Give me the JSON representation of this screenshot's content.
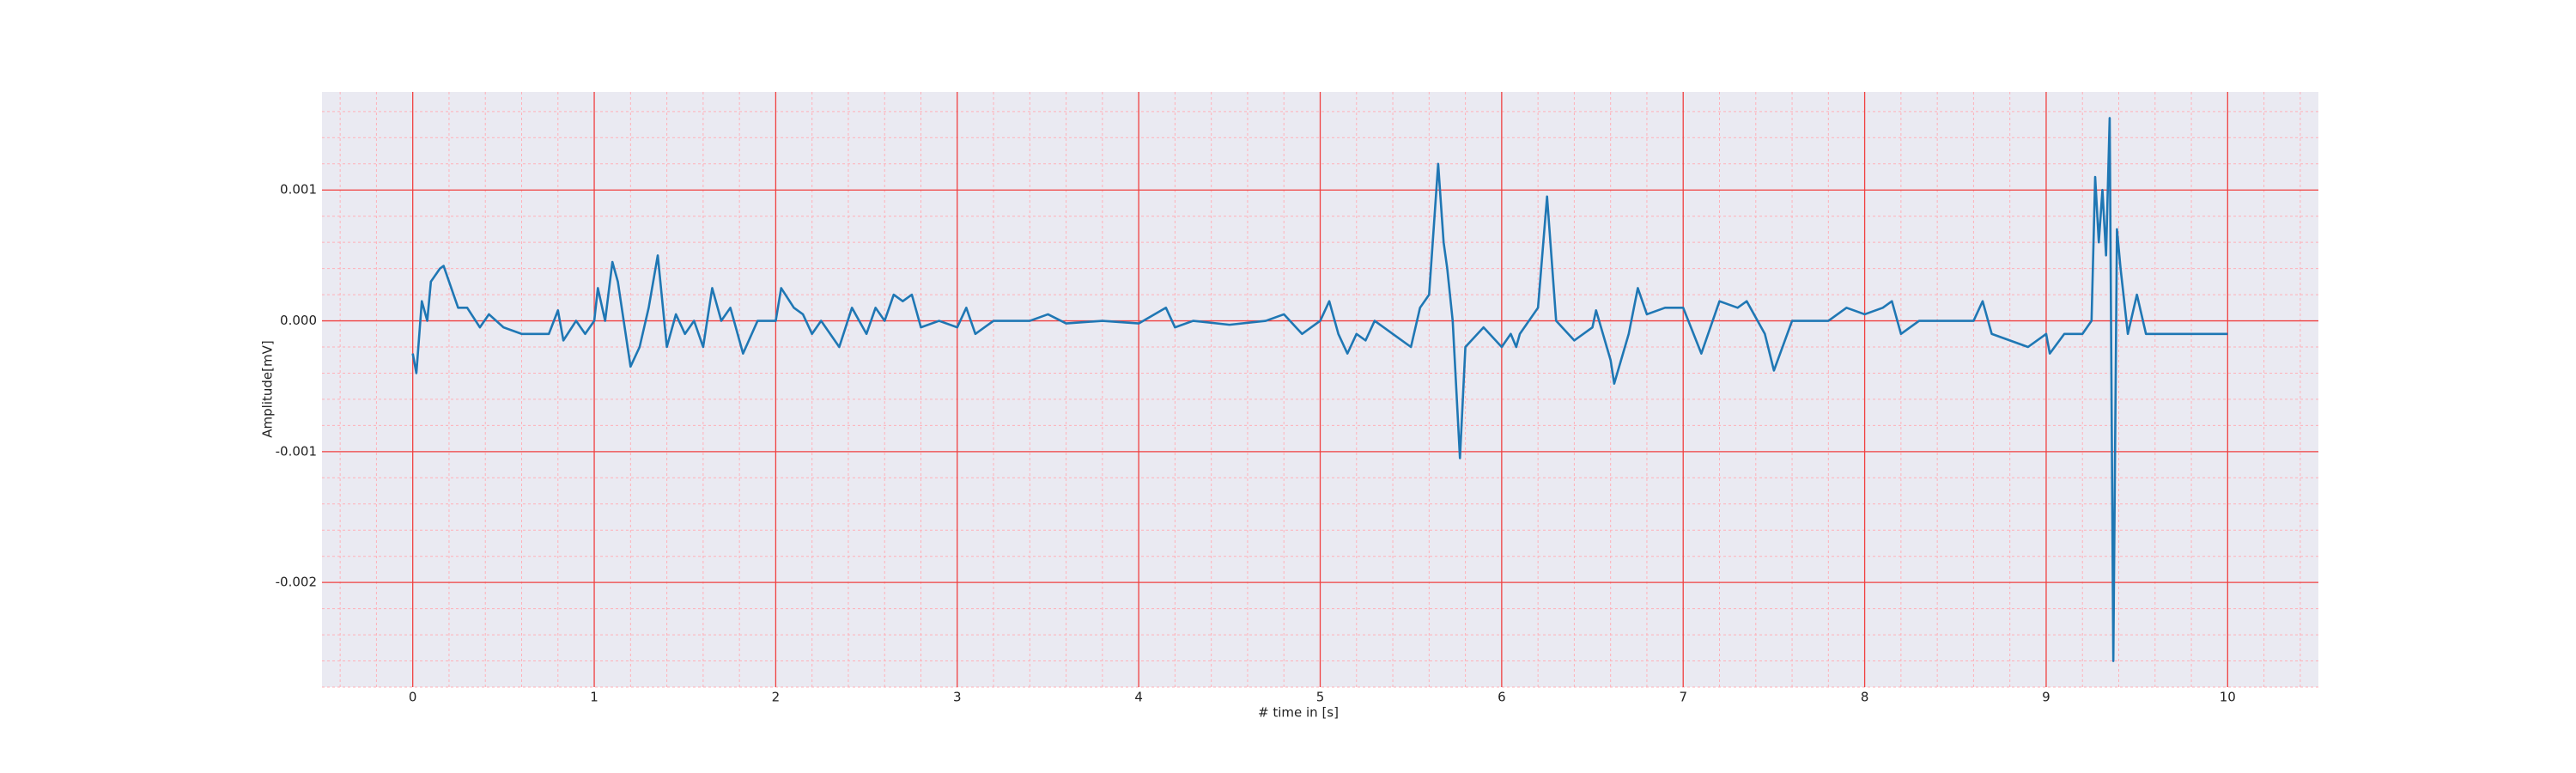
{
  "chart_data": {
    "type": "line",
    "xlabel": "# time in [s]",
    "ylabel": "Amplitude[mV]",
    "xlim": [
      -0.5,
      10.5
    ],
    "ylim": [
      -0.0028,
      0.00175
    ],
    "xticks": [
      0,
      1,
      2,
      3,
      4,
      5,
      6,
      7,
      8,
      9,
      10
    ],
    "yticks": [
      -0.002,
      -0.001,
      {
        "value": 0,
        "label": "0.000"
      },
      0.001
    ],
    "xminorticks": [
      -0.4,
      -0.2,
      0.2,
      0.4,
      0.6,
      0.8,
      1.2,
      1.4,
      1.6,
      1.8,
      2.2,
      2.4,
      2.6,
      2.8,
      3.2,
      3.4,
      3.6,
      3.8,
      4.2,
      4.4,
      4.6,
      4.8,
      5.2,
      5.4,
      5.6,
      5.8,
      6.2,
      6.4,
      6.6,
      6.8,
      7.2,
      7.4,
      7.6,
      7.8,
      8.2,
      8.4,
      8.6,
      8.8,
      9.2,
      9.4,
      9.6,
      9.8,
      10.2,
      10.4
    ],
    "yminorticks": [
      -0.0028,
      -0.0026,
      -0.0024,
      -0.0022,
      -0.0018,
      -0.0016,
      -0.0014,
      -0.0012,
      -0.0008,
      -0.0006,
      -0.0004,
      -0.0002,
      0.0002,
      0.0004,
      0.0006,
      0.0008,
      0.0012,
      0.0014,
      0.0016
    ],
    "grid": true,
    "minor_grid": true,
    "series": [
      {
        "color": "#1f77b4",
        "x": [
          0,
          0.02,
          0.05,
          0.08,
          0.1,
          0.15,
          0.17,
          0.25,
          0.3,
          0.37,
          0.42,
          0.5,
          0.6,
          0.75,
          0.8,
          0.83,
          0.9,
          0.95,
          1.0,
          1.02,
          1.06,
          1.1,
          1.13,
          1.2,
          1.25,
          1.3,
          1.35,
          1.4,
          1.45,
          1.5,
          1.55,
          1.6,
          1.65,
          1.7,
          1.75,
          1.82,
          1.9,
          2.0,
          2.03,
          2.1,
          2.15,
          2.2,
          2.25,
          2.3,
          2.35,
          2.42,
          2.5,
          2.55,
          2.6,
          2.65,
          2.7,
          2.75,
          2.8,
          2.9,
          3.0,
          3.05,
          3.1,
          3.2,
          3.4,
          3.5,
          3.6,
          3.8,
          4.0,
          4.15,
          4.2,
          4.3,
          4.5,
          4.7,
          4.8,
          4.9,
          5.0,
          5.05,
          5.1,
          5.15,
          5.2,
          5.25,
          5.3,
          5.4,
          5.5,
          5.55,
          5.6,
          5.65,
          5.68,
          5.7,
          5.73,
          5.77,
          5.8,
          5.9,
          6.0,
          6.05,
          6.08,
          6.1,
          6.2,
          6.25,
          6.3,
          6.4,
          6.5,
          6.52,
          6.6,
          6.62,
          6.7,
          6.75,
          6.8,
          6.9,
          7.0,
          7.1,
          7.2,
          7.3,
          7.35,
          7.45,
          7.5,
          7.6,
          7.8,
          7.9,
          8.0,
          8.1,
          8.15,
          8.2,
          8.3,
          8.5,
          8.6,
          8.65,
          8.7,
          8.9,
          9.0,
          9.02,
          9.1,
          9.2,
          9.25,
          9.27,
          9.29,
          9.31,
          9.33,
          9.35,
          9.37,
          9.39,
          9.41,
          9.45,
          9.5,
          9.55,
          9.7,
          9.85,
          10.0
        ],
        "values": [
          -0.00025,
          -0.0004,
          0.00015,
          0.0,
          0.0003,
          0.0004,
          0.00042,
          0.0001,
          0.0001,
          -5e-05,
          5e-05,
          -5e-05,
          -0.0001,
          -0.0001,
          8e-05,
          -0.00015,
          0.0,
          -0.0001,
          0.0,
          0.00025,
          0.0,
          0.00045,
          0.0003,
          -0.00035,
          -0.0002,
          0.0001,
          0.0005,
          -0.0002,
          5e-05,
          -0.0001,
          0.0,
          -0.0002,
          0.00025,
          0.0,
          0.0001,
          -0.00025,
          0.0,
          0.0,
          0.00025,
          0.0001,
          5e-05,
          -0.0001,
          0.0,
          -0.0001,
          -0.0002,
          0.0001,
          -0.0001,
          0.0001,
          0.0,
          0.0002,
          0.00015,
          0.0002,
          -5e-05,
          0.0,
          -5e-05,
          0.0001,
          -0.0001,
          0.0,
          0.0,
          5e-05,
          -2e-05,
          0.0,
          -2e-05,
          0.0001,
          -5e-05,
          0.0,
          -3e-05,
          0.0,
          5e-05,
          -0.0001,
          0.0,
          0.00015,
          -0.0001,
          -0.00025,
          -0.0001,
          -0.00015,
          0.0,
          -0.0001,
          -0.0002,
          0.0001,
          0.0002,
          0.0012,
          0.0006,
          0.0004,
          0.0,
          -0.00105,
          -0.0002,
          -5e-05,
          -0.0002,
          -0.0001,
          -0.0002,
          -0.0001,
          0.0001,
          0.00095,
          0.0,
          -0.00015,
          -5e-05,
          8e-05,
          -0.0003,
          -0.00048,
          -0.0001,
          0.00025,
          5e-05,
          0.0001,
          0.0001,
          -0.00025,
          0.00015,
          0.0001,
          0.00015,
          -0.0001,
          -0.00038,
          0.0,
          0.0,
          0.0001,
          5e-05,
          0.0001,
          0.00015,
          -0.0001,
          0.0,
          0.0,
          0.0,
          0.00015,
          -0.0001,
          -0.0002,
          -0.0001,
          -0.00025,
          -0.0001,
          -0.0001,
          0.0,
          0.0011,
          0.0006,
          0.001,
          0.0005,
          0.00155,
          -0.0026,
          0.0007,
          0.0004,
          -0.0001,
          0.0002,
          -0.0001,
          -0.0001,
          -0.0001,
          -0.0001
        ]
      }
    ]
  }
}
